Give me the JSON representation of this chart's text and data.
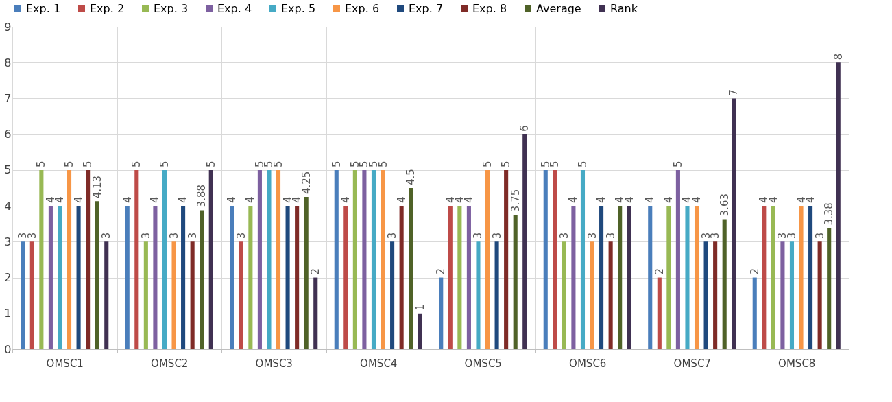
{
  "chart_data": {
    "type": "bar",
    "categories": [
      "OMSC1",
      "OMSC2",
      "OMSC3",
      "OMSC4",
      "OMSC5",
      "OMSC6",
      "OMSC7",
      "OMSC8"
    ],
    "series": [
      {
        "name": "Exp. 1",
        "color": "#4a7ebb",
        "values": [
          3,
          4,
          4,
          5,
          2,
          5,
          4,
          2
        ]
      },
      {
        "name": "Exp. 2",
        "color": "#be4b48",
        "values": [
          3,
          5,
          3,
          4,
          4,
          5,
          2,
          4
        ]
      },
      {
        "name": "Exp. 3",
        "color": "#98b954",
        "values": [
          5,
          3,
          4,
          5,
          4,
          3,
          4,
          4
        ]
      },
      {
        "name": "Exp. 4",
        "color": "#7d60a0",
        "values": [
          4,
          4,
          5,
          5,
          4,
          4,
          5,
          3
        ]
      },
      {
        "name": "Exp. 5",
        "color": "#46aac5",
        "values": [
          4,
          5,
          5,
          5,
          3,
          5,
          4,
          3
        ]
      },
      {
        "name": "Exp. 6",
        "color": "#f79646",
        "values": [
          5,
          3,
          5,
          5,
          5,
          3,
          4,
          4
        ]
      },
      {
        "name": "Exp. 7",
        "color": "#1f497d",
        "values": [
          4,
          4,
          4,
          3,
          3,
          4,
          3,
          4
        ]
      },
      {
        "name": "Exp. 8",
        "color": "#7f2b27",
        "values": [
          5,
          3,
          4,
          4,
          5,
          3,
          3,
          3
        ]
      },
      {
        "name": "Average",
        "color": "#4f6228",
        "values": [
          4.13,
          3.88,
          4.25,
          4.5,
          3.75,
          4,
          3.63,
          3.38
        ]
      },
      {
        "name": "Rank",
        "color": "#403152",
        "values": [
          3,
          5,
          2,
          1,
          6,
          4,
          7,
          8
        ]
      }
    ],
    "ylim": [
      0,
      9
    ],
    "yticks": [
      0,
      1,
      2,
      3,
      4,
      5,
      6,
      7,
      8,
      9
    ],
    "grid": true,
    "legend": "top",
    "data_labels": true
  }
}
